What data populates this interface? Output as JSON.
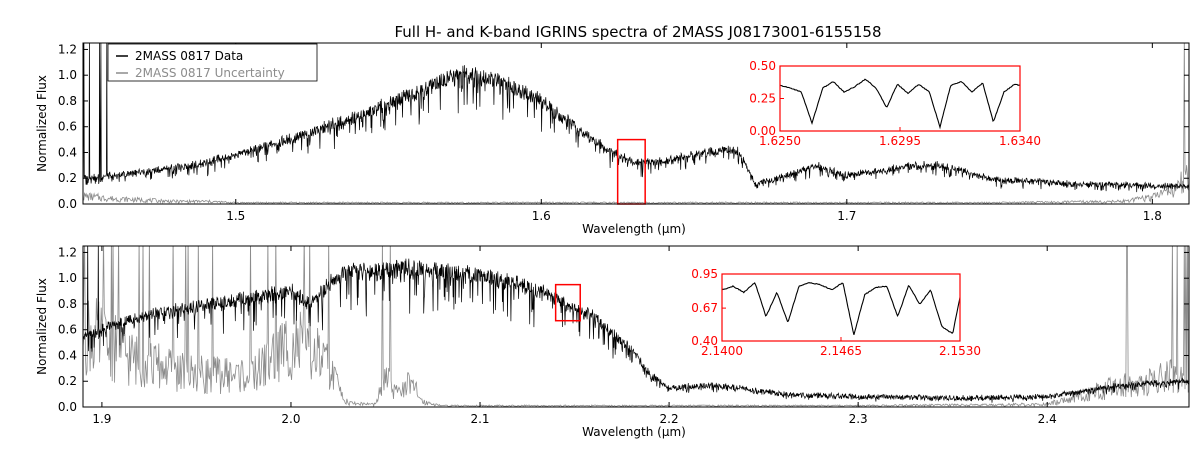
{
  "title": "Full H- and K-band IGRINS spectra of 2MASS J08173001-6155158",
  "colors": {
    "data": "#000000",
    "uncertainty": "#8c8c8c",
    "inset": "#ff0000"
  },
  "chart_data": [
    {
      "type": "line",
      "band": "H",
      "xlabel": "Wavelength (μm)",
      "ylabel": "Normalized Flux",
      "xlim": [
        1.45,
        1.812
      ],
      "ylim": [
        0.0,
        1.25
      ],
      "xticks": [
        {
          "v": 1.5,
          "label": "1.5"
        },
        {
          "v": 1.6,
          "label": "1.6"
        },
        {
          "v": 1.7,
          "label": "1.7"
        },
        {
          "v": 1.8,
          "label": "1.8"
        }
      ],
      "yticks": [
        {
          "v": 0.0,
          "label": "0.0"
        },
        {
          "v": 0.2,
          "label": "0.2"
        },
        {
          "v": 0.4,
          "label": "0.4"
        },
        {
          "v": 0.6,
          "label": "0.6"
        },
        {
          "v": 0.8,
          "label": "0.8"
        },
        {
          "v": 1.0,
          "label": "1.0"
        },
        {
          "v": 1.2,
          "label": "1.2"
        }
      ],
      "legend": {
        "placement": "upper left",
        "entries": [
          {
            "label": "2MASS 0817 Data",
            "color": "#000000"
          },
          {
            "label": "2MASS 0817 Uncertainty",
            "color": "#8c8c8c"
          }
        ]
      },
      "series": [
        {
          "name": "2MASS 0817 Data",
          "color": "#000000",
          "x": [
            1.45,
            1.46,
            1.47,
            1.48,
            1.49,
            1.5,
            1.51,
            1.52,
            1.53,
            1.54,
            1.55,
            1.56,
            1.57,
            1.575,
            1.58,
            1.59,
            1.6,
            1.61,
            1.62,
            1.63,
            1.64,
            1.65,
            1.66,
            1.665,
            1.67,
            1.68,
            1.69,
            1.7,
            1.71,
            1.72,
            1.73,
            1.74,
            1.75,
            1.76,
            1.77,
            1.78,
            1.79,
            1.8,
            1.812
          ],
          "y": [
            0.2,
            0.22,
            0.25,
            0.28,
            0.32,
            0.38,
            0.45,
            0.52,
            0.6,
            0.68,
            0.78,
            0.88,
            0.98,
            1.02,
            1.0,
            0.92,
            0.8,
            0.62,
            0.45,
            0.32,
            0.33,
            0.38,
            0.42,
            0.4,
            0.15,
            0.22,
            0.3,
            0.22,
            0.25,
            0.3,
            0.3,
            0.24,
            0.18,
            0.18,
            0.16,
            0.15,
            0.15,
            0.14,
            0.14
          ]
        },
        {
          "name": "2MASS 0817 Uncertainty",
          "color": "#8c8c8c",
          "x": [
            1.45,
            1.46,
            1.47,
            1.48,
            1.49,
            1.5,
            1.55,
            1.6,
            1.65,
            1.7,
            1.75,
            1.79,
            1.8,
            1.805,
            1.812
          ],
          "y": [
            0.06,
            0.04,
            0.03,
            0.02,
            0.02,
            0.01,
            0.01,
            0.01,
            0.01,
            0.01,
            0.01,
            0.02,
            0.05,
            0.1,
            0.2
          ]
        }
      ],
      "highlight": {
        "x": [
          1.625,
          1.634
        ],
        "y": [
          0.0,
          0.5
        ]
      },
      "inset": {
        "xlim": [
          1.625,
          1.634
        ],
        "ylim": [
          0.0,
          0.5
        ],
        "xticks": [
          {
            "v": 1.625,
            "label": "1.6250"
          },
          {
            "v": 1.6295,
            "label": "1.6295"
          },
          {
            "v": 1.634,
            "label": "1.6340"
          }
        ],
        "yticks": [
          {
            "v": 0.0,
            "label": "0.00"
          },
          {
            "v": 0.25,
            "label": "0.25"
          },
          {
            "v": 0.5,
            "label": "0.50"
          }
        ],
        "x": [
          1.625,
          1.6254,
          1.6258,
          1.6262,
          1.6266,
          1.627,
          1.6274,
          1.6278,
          1.6282,
          1.6286,
          1.629,
          1.6294,
          1.6298,
          1.6302,
          1.6306,
          1.631,
          1.6314,
          1.6318,
          1.6322,
          1.6326,
          1.633,
          1.6334,
          1.6338,
          1.634
        ],
        "y": [
          0.35,
          0.33,
          0.3,
          0.06,
          0.33,
          0.38,
          0.3,
          0.34,
          0.4,
          0.33,
          0.18,
          0.36,
          0.29,
          0.36,
          0.3,
          0.03,
          0.35,
          0.38,
          0.3,
          0.37,
          0.07,
          0.3,
          0.36,
          0.35
        ]
      }
    },
    {
      "type": "line",
      "band": "K",
      "xlabel": "Wavelength (μm)",
      "ylabel": "Normalized Flux",
      "xlim": [
        1.89,
        2.475
      ],
      "ylim": [
        0.0,
        1.25
      ],
      "xticks": [
        {
          "v": 1.9,
          "label": "1.9"
        },
        {
          "v": 2.0,
          "label": "2.0"
        },
        {
          "v": 2.1,
          "label": "2.1"
        },
        {
          "v": 2.2,
          "label": "2.2"
        },
        {
          "v": 2.3,
          "label": "2.3"
        },
        {
          "v": 2.4,
          "label": "2.4"
        }
      ],
      "yticks": [
        {
          "v": 0.0,
          "label": "0.0"
        },
        {
          "v": 0.2,
          "label": "0.2"
        },
        {
          "v": 0.4,
          "label": "0.4"
        },
        {
          "v": 0.6,
          "label": "0.6"
        },
        {
          "v": 0.8,
          "label": "0.8"
        },
        {
          "v": 1.0,
          "label": "1.0"
        },
        {
          "v": 1.2,
          "label": "1.2"
        }
      ],
      "series": [
        {
          "name": "2MASS 0817 Data",
          "color": "#000000",
          "x": [
            1.89,
            1.9,
            1.92,
            1.94,
            1.96,
            1.98,
            2.0,
            2.01,
            2.02,
            2.03,
            2.04,
            2.06,
            2.08,
            2.1,
            2.12,
            2.14,
            2.16,
            2.18,
            2.19,
            2.2,
            2.22,
            2.24,
            2.26,
            2.3,
            2.35,
            2.4,
            2.44,
            2.475
          ],
          "y": [
            0.55,
            0.6,
            0.7,
            0.75,
            0.8,
            0.85,
            0.9,
            0.8,
            0.95,
            1.05,
            1.05,
            1.08,
            1.05,
            1.02,
            0.95,
            0.85,
            0.7,
            0.45,
            0.25,
            0.15,
            0.17,
            0.14,
            0.1,
            0.08,
            0.07,
            0.08,
            0.17,
            0.2
          ]
        },
        {
          "name": "2MASS 0817 Uncertainty",
          "color": "#8c8c8c",
          "x": [
            1.89,
            1.9,
            1.92,
            1.95,
            1.98,
            2.0,
            2.01,
            2.02,
            2.03,
            2.045,
            2.05,
            2.055,
            2.06,
            2.065,
            2.07,
            2.08,
            2.1,
            2.3,
            2.4,
            2.42,
            2.45,
            2.475
          ],
          "y": [
            0.6,
            0.5,
            0.35,
            0.25,
            0.25,
            0.5,
            0.45,
            0.3,
            0.03,
            0.02,
            0.25,
            0.1,
            0.18,
            0.15,
            0.04,
            0.01,
            0.01,
            0.01,
            0.02,
            0.1,
            0.2,
            0.25
          ]
        }
      ],
      "highlight": {
        "x": [
          2.14,
          2.153
        ],
        "y": [
          0.67,
          0.95
        ]
      },
      "inset": {
        "xlim": [
          2.14,
          2.153
        ],
        "ylim": [
          0.4,
          0.95
        ],
        "xticks": [
          {
            "v": 2.14,
            "label": "2.1400"
          },
          {
            "v": 2.1465,
            "label": "2.1465"
          },
          {
            "v": 2.153,
            "label": "2.1530"
          }
        ],
        "yticks": [
          {
            "v": 0.4,
            "label": "0.40"
          },
          {
            "v": 0.67,
            "label": "0.67"
          },
          {
            "v": 0.95,
            "label": "0.95"
          }
        ],
        "x": [
          2.14,
          2.1406,
          2.1412,
          2.1418,
          2.1424,
          2.143,
          2.1436,
          2.1442,
          2.1448,
          2.1454,
          2.146,
          2.1466,
          2.1472,
          2.1478,
          2.1484,
          2.149,
          2.1496,
          2.1502,
          2.1508,
          2.1514,
          2.152,
          2.1526,
          2.153
        ],
        "y": [
          0.82,
          0.85,
          0.8,
          0.88,
          0.6,
          0.8,
          0.55,
          0.85,
          0.88,
          0.86,
          0.82,
          0.88,
          0.45,
          0.78,
          0.84,
          0.85,
          0.6,
          0.86,
          0.7,
          0.82,
          0.52,
          0.46,
          0.76
        ]
      }
    }
  ]
}
